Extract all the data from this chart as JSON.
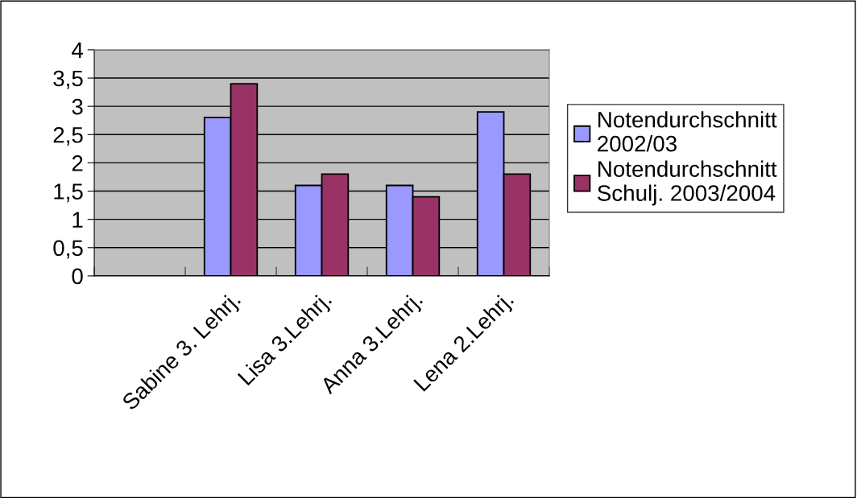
{
  "chart_data": {
    "type": "bar",
    "categories": [
      null,
      "Sabine 3. Lehrj.",
      "Lisa 3.Lehrj.",
      "Anna 3.Lehrj.",
      "Lena 2.Lehrj."
    ],
    "series": [
      {
        "name": "Notendurchschnitt\n2002/03",
        "color": "#9999ff",
        "values": [
          null,
          2.8,
          1.6,
          1.6,
          2.9
        ]
      },
      {
        "name": "Notendurchschnitt\nSchulj. 2003/2004",
        "color": "#993366",
        "values": [
          null,
          3.4,
          1.8,
          1.4,
          1.8
        ]
      }
    ],
    "ylim": [
      0,
      4
    ],
    "yticks": [
      0,
      {
        "value": 0.5,
        "label": "0,5"
      },
      1,
      {
        "value": 1.5,
        "label": "1,5"
      },
      2,
      {
        "value": 2.5,
        "label": "2,5"
      },
      3,
      {
        "value": 3.5,
        "label": "3,5"
      },
      4
    ],
    "grid": "y",
    "legend": "right"
  }
}
